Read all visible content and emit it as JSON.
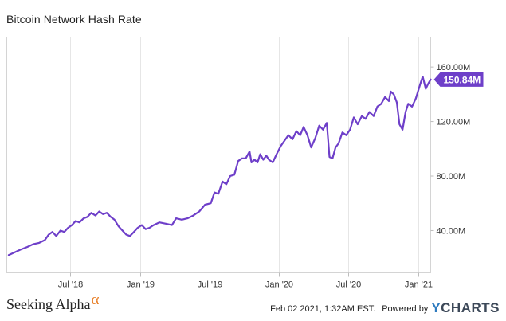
{
  "chart_data": {
    "type": "line",
    "title": "Bitcoin Network Hash Rate",
    "x_ticks": [
      "Jul '18",
      "Jan '19",
      "Jul '19",
      "Jan '20",
      "Jul '20",
      "Jan '21"
    ],
    "y_ticks": [
      "40.00M",
      "80.00M",
      "120.00M",
      "160.00M"
    ],
    "y_tick_values": [
      40,
      80,
      120,
      160
    ],
    "ylim": [
      9,
      182
    ],
    "xlim": [
      "2018-01-15",
      "2021-02-02"
    ],
    "grid": "vertical",
    "series_color": "#6e3fc9",
    "last_value_label": "150.84M",
    "series": [
      {
        "name": "Bitcoin Network Hash Rate",
        "unit": "M",
        "points": [
          [
            "2018-01-20",
            22
          ],
          [
            "2018-02-05",
            24
          ],
          [
            "2018-02-20",
            26
          ],
          [
            "2018-03-10",
            28
          ],
          [
            "2018-03-25",
            30
          ],
          [
            "2018-04-10",
            31
          ],
          [
            "2018-04-25",
            33
          ],
          [
            "2018-05-05",
            37
          ],
          [
            "2018-05-15",
            39
          ],
          [
            "2018-05-25",
            36
          ],
          [
            "2018-06-05",
            40
          ],
          [
            "2018-06-15",
            39
          ],
          [
            "2018-06-25",
            42
          ],
          [
            "2018-07-05",
            44
          ],
          [
            "2018-07-15",
            47
          ],
          [
            "2018-07-25",
            46
          ],
          [
            "2018-08-05",
            49
          ],
          [
            "2018-08-15",
            50
          ],
          [
            "2018-08-25",
            53
          ],
          [
            "2018-09-05",
            51
          ],
          [
            "2018-09-15",
            54
          ],
          [
            "2018-09-25",
            52
          ],
          [
            "2018-10-05",
            53
          ],
          [
            "2018-10-15",
            50
          ],
          [
            "2018-10-25",
            48
          ],
          [
            "2018-11-05",
            43
          ],
          [
            "2018-11-15",
            40
          ],
          [
            "2018-11-25",
            37
          ],
          [
            "2018-12-05",
            36
          ],
          [
            "2018-12-15",
            39
          ],
          [
            "2018-12-25",
            42
          ],
          [
            "2019-01-05",
            44
          ],
          [
            "2019-01-15",
            41
          ],
          [
            "2019-01-25",
            42
          ],
          [
            "2019-02-05",
            44
          ],
          [
            "2019-02-20",
            46
          ],
          [
            "2019-03-10",
            45
          ],
          [
            "2019-03-25",
            44
          ],
          [
            "2019-04-05",
            49
          ],
          [
            "2019-04-20",
            48
          ],
          [
            "2019-05-05",
            49
          ],
          [
            "2019-05-20",
            51
          ],
          [
            "2019-06-05",
            54
          ],
          [
            "2019-06-20",
            59
          ],
          [
            "2019-07-05",
            60
          ],
          [
            "2019-07-15",
            68
          ],
          [
            "2019-07-25",
            67
          ],
          [
            "2019-08-05",
            76
          ],
          [
            "2019-08-15",
            74
          ],
          [
            "2019-08-25",
            80
          ],
          [
            "2019-09-05",
            81
          ],
          [
            "2019-09-15",
            91
          ],
          [
            "2019-09-25",
            93
          ],
          [
            "2019-10-05",
            93
          ],
          [
            "2019-10-15",
            98
          ],
          [
            "2019-10-20",
            90
          ],
          [
            "2019-10-28",
            92
          ],
          [
            "2019-11-05",
            90
          ],
          [
            "2019-11-12",
            96
          ],
          [
            "2019-11-20",
            92
          ],
          [
            "2019-11-28",
            95
          ],
          [
            "2019-12-05",
            92
          ],
          [
            "2019-12-15",
            90
          ],
          [
            "2019-12-25",
            96
          ],
          [
            "2020-01-05",
            102
          ],
          [
            "2020-01-15",
            106
          ],
          [
            "2020-01-25",
            110
          ],
          [
            "2020-02-05",
            107
          ],
          [
            "2020-02-15",
            113
          ],
          [
            "2020-02-25",
            110
          ],
          [
            "2020-03-05",
            116
          ],
          [
            "2020-03-15",
            110
          ],
          [
            "2020-03-25",
            101
          ],
          [
            "2020-04-05",
            108
          ],
          [
            "2020-04-15",
            117
          ],
          [
            "2020-04-25",
            114
          ],
          [
            "2020-05-05",
            119
          ],
          [
            "2020-05-12",
            94
          ],
          [
            "2020-05-20",
            93
          ],
          [
            "2020-05-28",
            101
          ],
          [
            "2020-06-05",
            104
          ],
          [
            "2020-06-15",
            112
          ],
          [
            "2020-06-25",
            110
          ],
          [
            "2020-07-05",
            114
          ],
          [
            "2020-07-15",
            123
          ],
          [
            "2020-07-25",
            118
          ],
          [
            "2020-08-05",
            124
          ],
          [
            "2020-08-15",
            122
          ],
          [
            "2020-08-25",
            127
          ],
          [
            "2020-09-05",
            124
          ],
          [
            "2020-09-15",
            131
          ],
          [
            "2020-09-25",
            133
          ],
          [
            "2020-10-05",
            138
          ],
          [
            "2020-10-15",
            135
          ],
          [
            "2020-10-20",
            142
          ],
          [
            "2020-10-28",
            140
          ],
          [
            "2020-11-05",
            134
          ],
          [
            "2020-11-12",
            118
          ],
          [
            "2020-11-20",
            114
          ],
          [
            "2020-11-28",
            127
          ],
          [
            "2020-12-05",
            133
          ],
          [
            "2020-12-15",
            131
          ],
          [
            "2020-12-25",
            137
          ],
          [
            "2021-01-05",
            147
          ],
          [
            "2021-01-12",
            153
          ],
          [
            "2021-01-20",
            144
          ],
          [
            "2021-01-27",
            148
          ],
          [
            "2021-02-02",
            150.84
          ]
        ]
      }
    ]
  },
  "footer": {
    "brand": "Seeking Alpha",
    "brand_symbol": "α",
    "timestamp": "Feb 02 2021, 1:32AM EST.",
    "powered_by": "Powered by",
    "provider_y": "Y",
    "provider_rest": "CHARTS"
  }
}
